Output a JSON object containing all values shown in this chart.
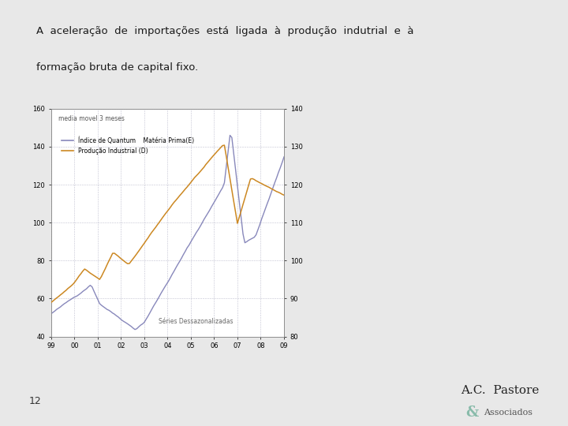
{
  "title_line1": "A  aceleração  de  importações  está  ligada  à  produção  indutrial  e  à",
  "title_line2": "formação bruta de capital fixo.",
  "subtitle": "media movel 3 meses",
  "annotation": "Séries Dessazonalizadas",
  "legend_line1": "Índice de Quantum    Matéria Prima(E)",
  "legend_line2": "Produção Industrial (D)",
  "color_blue": "#8888bb",
  "color_orange": "#cc8822",
  "bg_color": "#e8e8e8",
  "plot_bg": "#ffffff",
  "header_bg": "#e8e8e8",
  "chart_frame_bg": "#ffffff",
  "left_accent_color": "#88bbaa",
  "bottom_bar_color": "#f0a898",
  "page_number": "12",
  "x_ticks": [
    "99",
    "00",
    "01",
    "02",
    "03",
    "04",
    "05",
    "06",
    "07",
    "08",
    "09"
  ],
  "left_ylim": [
    40,
    160
  ],
  "right_ylim": [
    80,
    140
  ],
  "left_yticks": [
    40,
    60,
    80,
    100,
    120,
    140,
    160
  ],
  "right_yticks": [
    80,
    90,
    100,
    110,
    120,
    130,
    140
  ],
  "brand_main": "A.C.  Pastore",
  "brand_amp": "&",
  "brand_sub": "Associados",
  "brand_dot_color": "#88bbaa"
}
